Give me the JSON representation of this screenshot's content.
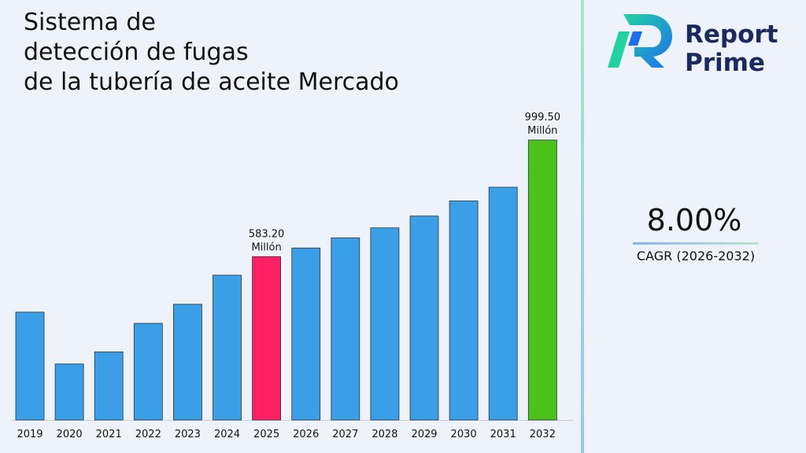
{
  "title_lines": [
    "Sistema de",
    "detección de fugas",
    "de la tubería de aceite Mercado"
  ],
  "brand": {
    "line1": "Report",
    "line2": "Prime"
  },
  "cagr": {
    "value": "8.00%",
    "label": "CAGR (2026-2032)"
  },
  "colors": {
    "default_bar": "#3b9fe8",
    "highlight_base_year": "#ff1f63",
    "highlight_final_year": "#4cc21a",
    "logo_teal": "#22d3a0",
    "logo_blue": "#1e6ff0",
    "brand_text": "#1a2a5c"
  },
  "chart_data": {
    "type": "bar",
    "categories": [
      "2019",
      "2020",
      "2021",
      "2022",
      "2023",
      "2024",
      "2025",
      "2026",
      "2027",
      "2028",
      "2029",
      "2030",
      "2031",
      "2032"
    ],
    "values": [
      385,
      200,
      243,
      345,
      413,
      517,
      583.2,
      614,
      650,
      686,
      728,
      782,
      831,
      999.5
    ],
    "ylim": [
      0,
      1050
    ],
    "highlight": {
      "2025": "highlight_base_year",
      "2032": "highlight_final_year"
    },
    "data_labels": [
      {
        "category": "2025",
        "lines": [
          "583.20",
          "Millón"
        ]
      },
      {
        "category": "2032",
        "lines": [
          "999.50",
          "Millón"
        ]
      }
    ],
    "xlabel": "",
    "ylabel": "",
    "grid": false,
    "legend": "none"
  }
}
